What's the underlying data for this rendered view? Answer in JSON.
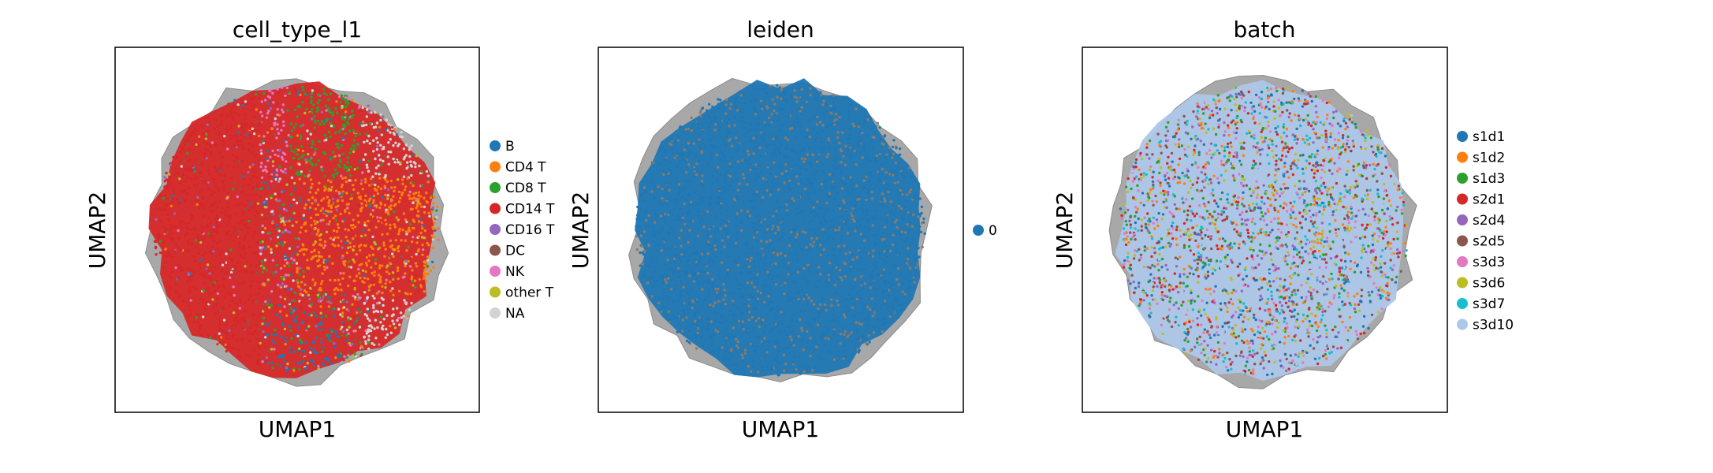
{
  "chart_data": [
    {
      "type": "scatter",
      "title": "cell_type_l1",
      "xlabel": "UMAP1",
      "ylabel": "UMAP2",
      "grid": false,
      "legend_placement": "right",
      "dominant_group": "CD14 T",
      "groups": [
        {
          "name": "B",
          "color": "#1f77b4"
        },
        {
          "name": "CD4 T",
          "color": "#ff7f0e"
        },
        {
          "name": "CD8 T",
          "color": "#2ca02c"
        },
        {
          "name": "CD14 T",
          "color": "#d62728"
        },
        {
          "name": "CD16 T",
          "color": "#9467bd"
        },
        {
          "name": "DC",
          "color": "#8c564b"
        },
        {
          "name": "NK",
          "color": "#e377c2"
        },
        {
          "name": "other T",
          "color": "#bcbd22"
        },
        {
          "name": "NA",
          "color": "#d3d3d3"
        }
      ]
    },
    {
      "type": "scatter",
      "title": "leiden",
      "xlabel": "UMAP1",
      "ylabel": "UMAP2",
      "grid": false,
      "legend_placement": "right",
      "dominant_group": "0",
      "groups": [
        {
          "name": "0",
          "color": "#1f77b4"
        }
      ]
    },
    {
      "type": "scatter",
      "title": "batch",
      "xlabel": "UMAP1",
      "ylabel": "UMAP2",
      "grid": false,
      "legend_placement": "right",
      "dominant_group": "s3d10",
      "groups": [
        {
          "name": "s1d1",
          "color": "#1f77b4"
        },
        {
          "name": "s1d2",
          "color": "#ff7f0e"
        },
        {
          "name": "s1d3",
          "color": "#2ca02c"
        },
        {
          "name": "s2d1",
          "color": "#d62728"
        },
        {
          "name": "s2d4",
          "color": "#9467bd"
        },
        {
          "name": "s2d5",
          "color": "#8c564b"
        },
        {
          "name": "s3d3",
          "color": "#e377c2"
        },
        {
          "name": "s3d6",
          "color": "#bcbd22"
        },
        {
          "name": "s3d7",
          "color": "#17becf"
        },
        {
          "name": "s3d10",
          "color": "#aec7e8"
        }
      ]
    }
  ]
}
